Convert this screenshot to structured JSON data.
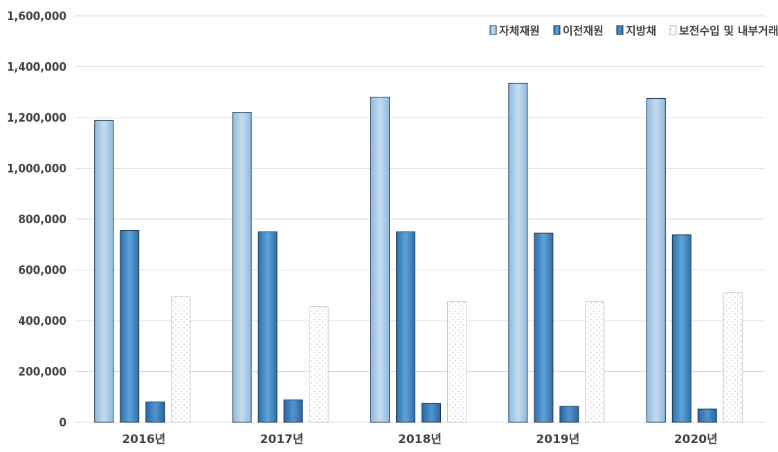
{
  "chart_data": {
    "type": "bar",
    "categories": [
      "2016년",
      "2017년",
      "2018년",
      "2019년",
      "2020년"
    ],
    "series": [
      {
        "name": "자체재원",
        "values": [
          1188000,
          1220000,
          1280000,
          1335000,
          1275000
        ]
      },
      {
        "name": "이전재원",
        "values": [
          755000,
          750000,
          750000,
          745000,
          738000
        ]
      },
      {
        "name": "지방채",
        "values": [
          80000,
          88000,
          75000,
          63000,
          52000
        ]
      },
      {
        "name": "보전수입 및 내부거래",
        "values": [
          495000,
          455000,
          475000,
          475000,
          510000
        ]
      }
    ],
    "ylim": [
      0,
      1600000
    ],
    "yticks": [
      0,
      200000,
      400000,
      600000,
      800000,
      1000000,
      1200000,
      1400000,
      1600000
    ],
    "ytick_labels": [
      "0",
      "200,000",
      "400,000",
      "600,000",
      "800,000",
      "1,000,000",
      "1,200,000",
      "1,400,000",
      "1,600,000"
    ],
    "grid": true,
    "legend_position": "top-right",
    "colors": {
      "자체재원": "#a9cbe8",
      "이전재원": "#4a90c8",
      "지방채": "#3a7fc0",
      "보전수입 및 내부거래": "#ffffff",
      "grid": "#d9d9d9",
      "bar_edge": "#1f3550"
    }
  }
}
